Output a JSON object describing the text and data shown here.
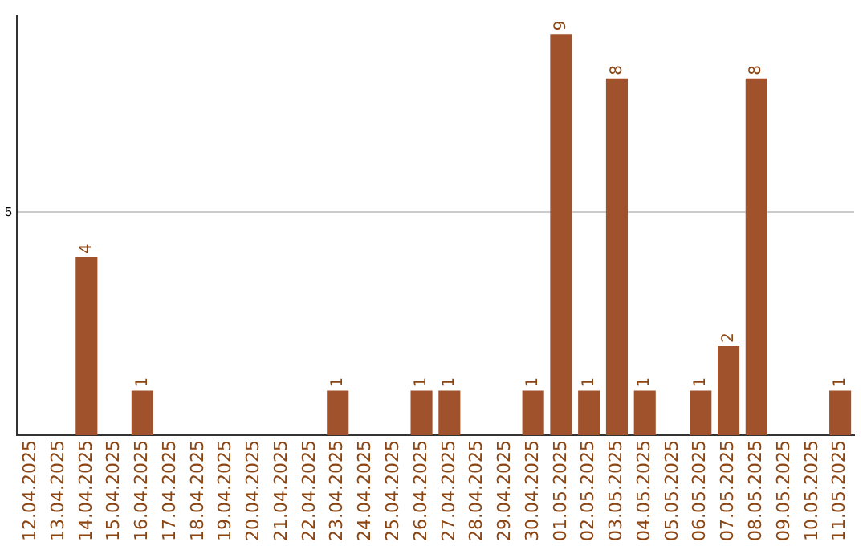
{
  "chart_data": {
    "type": "bar",
    "categories": [
      "12.04.2025",
      "13.04.2025",
      "14.04.2025",
      "15.04.2025",
      "16.04.2025",
      "17.04.2025",
      "18.04.2025",
      "19.04.2025",
      "20.04.2025",
      "21.04.2025",
      "22.04.2025",
      "23.04.2025",
      "24.04.2025",
      "25.04.2025",
      "26.04.2025",
      "27.04.2025",
      "28.04.2025",
      "29.04.2025",
      "30.04.2025",
      "01.05.2025",
      "02.05.2025",
      "03.05.2025",
      "04.05.2025",
      "05.05.2025",
      "06.05.2025",
      "07.05.2025",
      "08.05.2025",
      "09.05.2025",
      "10.05.2025",
      "11.05.2025"
    ],
    "values": [
      0,
      0,
      4,
      0,
      1,
      0,
      0,
      0,
      0,
      0,
      0,
      1,
      0,
      0,
      1,
      1,
      0,
      0,
      1,
      9,
      1,
      8,
      1,
      0,
      1,
      2,
      8,
      0,
      0,
      1
    ],
    "value_labels": [
      null,
      null,
      "4",
      null,
      "1",
      null,
      null,
      null,
      null,
      null,
      null,
      "1",
      null,
      null,
      "1",
      "1",
      null,
      null,
      "1",
      "9",
      "1",
      "8",
      "1",
      null,
      "1",
      "2",
      "8",
      null,
      null,
      "1"
    ],
    "color": "#a0522d",
    "ylim": [
      0,
      9.4
    ],
    "yticks": [
      5
    ],
    "grid": "y"
  }
}
